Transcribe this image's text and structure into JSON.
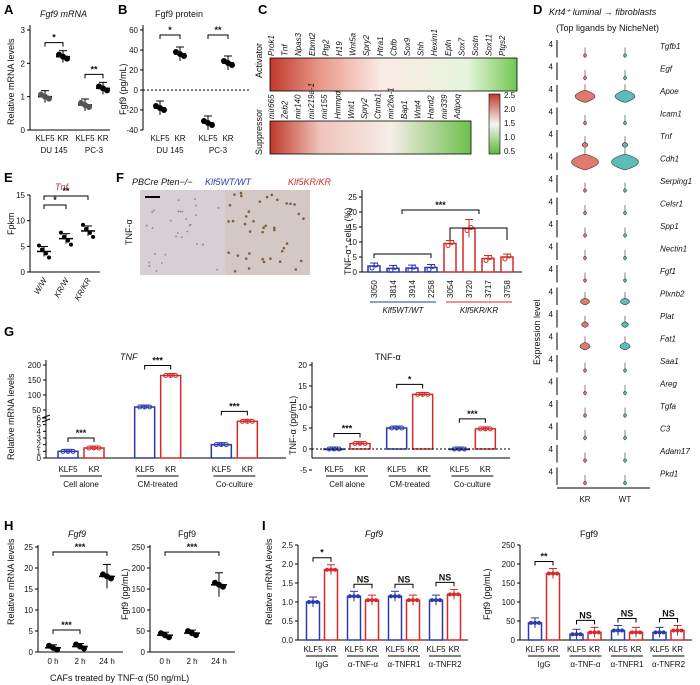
{
  "colors": {
    "klf5": "#2b3aa8",
    "kr": "#d42a2a",
    "violin_kr": "#e07a6c",
    "violin_wt": "#5bbcb8"
  },
  "panelA": {
    "label": "A",
    "title": "Fgf9 mRNA",
    "ylabel": "Relative mRNA levels",
    "yticks": [
      "0",
      "1",
      "2",
      "3"
    ],
    "groups": [
      {
        "name": "DU 145",
        "bars": [
          {
            "label": "KLF5",
            "value": 1.0
          },
          {
            "label": "KR",
            "value": 2.2
          }
        ],
        "sig": "*"
      },
      {
        "name": "PC-3",
        "bars": [
          {
            "label": "KLF5",
            "value": 0.75
          },
          {
            "label": "KR",
            "value": 1.25
          }
        ],
        "sig": "**"
      }
    ]
  },
  "panelB": {
    "label": "B",
    "title": "Fgf9 protein",
    "ylabel": "Fgf9 (pg/mL)",
    "yticks": [
      "60",
      "40",
      "20",
      "0",
      "-20",
      "-40"
    ],
    "groups": [
      {
        "name": "DU 145",
        "bars": [
          {
            "label": "KLF5",
            "value": -18
          },
          {
            "label": "KR",
            "value": 36
          }
        ],
        "sig": "*"
      },
      {
        "name": "PC-3",
        "bars": [
          {
            "label": "KLF5",
            "value": -33
          },
          {
            "label": "KR",
            "value": 27
          }
        ],
        "sig": "**"
      }
    ]
  },
  "panelC": {
    "label": "C",
    "activator_label": "Activator",
    "suppressor_label": "Suppressor",
    "activator_genes": [
      "Prok1",
      "Tnf",
      "Npas3",
      "Ebmt2",
      "Ptg2",
      "H19",
      "Wnt5a",
      "Spry2",
      "Htra1",
      "Cbfb",
      "Sox9",
      "Shh",
      "Hexim1",
      "Epfn",
      "Sox7",
      "Sostn",
      "Sox11",
      "Ptgs2"
    ],
    "suppressor_genes": [
      "mir665",
      "Zeb2",
      "mir140",
      "mir219a-1",
      "mir155",
      "Hmmpd",
      "Wnt1",
      "Spry2",
      "Ctnnb1",
      "mir26a-1",
      "Bap1",
      "Wnt4",
      "Hand2",
      "mir339",
      "Adipoq"
    ],
    "legend_ticks": [
      "2.5",
      "2.0",
      "1.5",
      "1.0",
      "0.5"
    ]
  },
  "panelD": {
    "label": "D",
    "title": "Krt4⁺ luminal → fibroblasts",
    "subtitle": "(Top ligands by NicheNet)",
    "ylabel": "Expression level",
    "tick": "4",
    "genes": [
      "Tgfb1",
      "Egf",
      "Apoe",
      "Icam1",
      "Tnf",
      "Cdh1",
      "Serping1",
      "Celsr1",
      "Spp1",
      "Nectin1",
      "Fgf1",
      "Plxnb2",
      "Plat",
      "Fat1",
      "Saa1",
      "Areg",
      "Tgfa",
      "C3",
      "Adam17",
      "Pkd1"
    ],
    "violin_size": [
      0,
      0,
      0.7,
      0,
      0.1,
      1,
      0,
      0,
      0,
      0,
      0,
      0.25,
      0.15,
      0.3,
      0,
      0,
      0,
      0,
      0,
      0
    ],
    "xlabels": [
      "KR",
      "WT"
    ]
  },
  "panelE": {
    "label": "E",
    "title": "Tnf",
    "ylabel": "Fpkm",
    "yticks": [
      "0",
      "5",
      "10",
      "15"
    ],
    "groups": [
      {
        "label": "W/W",
        "value": 4.0
      },
      {
        "label": "KR/W",
        "value": 6.5
      },
      {
        "label": "KR/KR",
        "value": 8.0
      }
    ],
    "sig1": "*",
    "sig2": "**"
  },
  "panelF": {
    "label": "F",
    "genotype": "PBCre Pten−/−",
    "wt_label": "Klf5WT/WT",
    "kr_label": "Klf5KR/KR",
    "stain_label": "TNF-α",
    "ylabel": "TNF-α⁺ cells (%)",
    "yticks": [
      "0",
      "5",
      "10",
      "15",
      "20",
      "25"
    ],
    "sig": "***",
    "samples": [
      {
        "id": "3050",
        "value": 2.0
      },
      {
        "id": "3814",
        "value": 1.2
      },
      {
        "id": "3914",
        "value": 1.3
      },
      {
        "id": "2258",
        "value": 1.5
      },
      {
        "id": "3054",
        "value": 9.5
      },
      {
        "id": "3720",
        "value": 14.5
      },
      {
        "id": "3717",
        "value": 4.5
      },
      {
        "id": "3758",
        "value": 5.0
      }
    ]
  },
  "panelG": {
    "label": "G",
    "left_title": "TNF",
    "left_ylabel": "Relative mRNA levels",
    "left_yticks": [
      "0",
      "1",
      "2",
      "3",
      "4",
      "5",
      "6",
      "50",
      "100",
      "150",
      "200"
    ],
    "right_title": "TNF-α",
    "right_ylabel": "TNF-α (pg/mL)",
    "right_yticks": [
      "-5",
      "0",
      "5",
      "10",
      "15",
      "20"
    ],
    "groups": [
      "Cell alone",
      "CM-treated",
      "Co-culture"
    ],
    "bars": [
      "KLF5",
      "KR"
    ],
    "left_values": [
      [
        1.0,
        1.5
      ],
      [
        60,
        165
      ],
      [
        2.0,
        5.5
      ]
    ],
    "right_values": [
      [
        0,
        1.3
      ],
      [
        5.0,
        13.0
      ],
      [
        0,
        4.8
      ]
    ],
    "left_sig": [
      "***",
      "***",
      "***"
    ],
    "right_sig": [
      "***",
      "*",
      "***"
    ]
  },
  "panelH": {
    "label": "H",
    "left_title": "Fgf9",
    "left_ylabel": "Relative mRNA levels",
    "left_yticks": [
      "0",
      "5",
      "10",
      "15",
      "20",
      "25"
    ],
    "right_title": "Fgf9",
    "right_ylabel": "Fgf9 (pg/mL)",
    "right_yticks": [
      "0",
      "50",
      "100",
      "150",
      "200",
      "250"
    ],
    "xlabels": [
      "0 h",
      "2 h",
      "24 h"
    ],
    "left_values": [
      1.0,
      1.3,
      18.0
    ],
    "right_values": [
      40,
      45,
      160
    ],
    "sig": "***",
    "xtitle": "CAFs treated by TNF-α (50 ng/mL)"
  },
  "panelI": {
    "label": "I",
    "left_title": "Fgf9",
    "left_ylabel": "Relative mRNA levels",
    "left_yticks": [
      "0.0",
      "0.5",
      "1.0",
      "1.5",
      "2.0",
      "2.5"
    ],
    "right_title": "Fgf9",
    "right_ylabel": "Fgf9 (pg/mL)",
    "right_yticks": [
      "0",
      "50",
      "100",
      "150",
      "200",
      "250"
    ],
    "groups": [
      "IgG",
      "α-TNF-α",
      "α-TNFR1",
      "α-TNFR2"
    ],
    "bars": [
      "KLF5",
      "KR"
    ],
    "left_values": [
      [
        1.0,
        1.85
      ],
      [
        1.15,
        1.05
      ],
      [
        1.15,
        1.05
      ],
      [
        1.05,
        1.2
      ]
    ],
    "right_values": [
      [
        45,
        175
      ],
      [
        15,
        20
      ],
      [
        25,
        20
      ],
      [
        20,
        25
      ]
    ],
    "left_sig": [
      "*",
      "NS",
      "NS",
      "NS"
    ],
    "right_sig": [
      "**",
      "NS",
      "NS",
      "NS"
    ]
  }
}
